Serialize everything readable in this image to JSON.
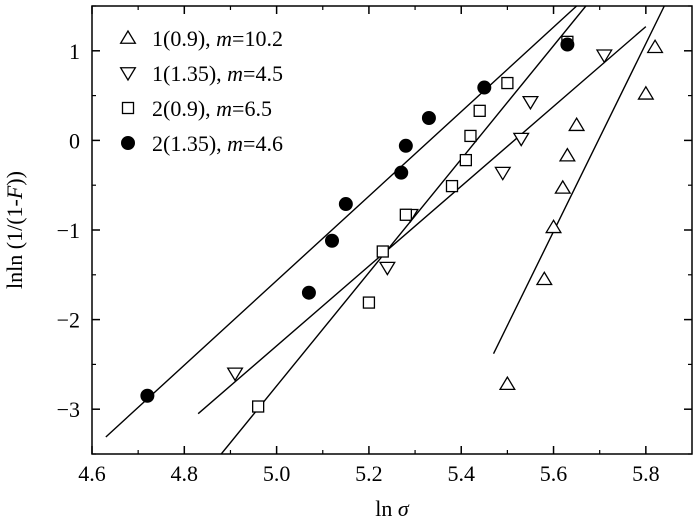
{
  "chart_data": {
    "type": "scatter",
    "xlabel_prefix": "ln ",
    "xlabel_var": "σ",
    "ylabel_prefix": "lnln (1/(1-",
    "ylabel_var": "F",
    "ylabel_suffix": "))",
    "xlim": [
      4.6,
      5.9
    ],
    "ylim": [
      -3.5,
      1.5
    ],
    "xticks": [
      4.6,
      4.8,
      5.0,
      5.2,
      5.4,
      5.6,
      5.8
    ],
    "xtick_labels": [
      "4.6",
      "4.8",
      "5.0",
      "5.2",
      "5.4",
      "5.6",
      "5.8"
    ],
    "yticks": [
      1,
      0,
      -1,
      -2,
      -3
    ],
    "ytick_labels": [
      "1",
      "0",
      "−1",
      "−2",
      "−3"
    ],
    "grid": false,
    "legend_position": "top-left",
    "series": [
      {
        "name": "1(0.9)",
        "m_value": "=10.2",
        "marker": "triangle-up",
        "x": [
          5.5,
          5.58,
          5.6,
          5.62,
          5.63,
          5.65,
          5.8,
          5.82
        ],
        "y": [
          -2.72,
          -1.55,
          -0.97,
          -0.53,
          -0.17,
          0.17,
          0.52,
          1.04
        ],
        "fit": {
          "x": [
            5.47,
            5.84
          ],
          "y": [
            -2.38,
            1.5
          ]
        }
      },
      {
        "name": "1(1.35)",
        "m_value": "=4.5",
        "marker": "triangle-down",
        "x": [
          4.91,
          5.24,
          5.29,
          5.49,
          5.53,
          5.55,
          5.71
        ],
        "y": [
          -2.6,
          -1.42,
          -0.83,
          -0.36,
          0.02,
          0.43,
          0.95
        ],
        "fit": {
          "x": [
            4.83,
            5.8
          ],
          "y": [
            -3.05,
            1.27
          ]
        }
      },
      {
        "name": "2(0.9)",
        "m_value": "=6.5",
        "marker": "square",
        "x": [
          4.96,
          5.2,
          5.23,
          5.28,
          5.38,
          5.41,
          5.42,
          5.44,
          5.5,
          5.63
        ],
        "y": [
          -2.97,
          -1.81,
          -1.24,
          -0.83,
          -0.51,
          -0.22,
          0.05,
          0.33,
          0.64,
          1.1
        ],
        "fit": {
          "x": [
            4.88,
            5.67
          ],
          "y": [
            -3.5,
            1.5
          ]
        }
      },
      {
        "name": "2(1.35)",
        "m_value": "=4.6",
        "marker": "circle",
        "x": [
          4.72,
          5.07,
          5.12,
          5.15,
          5.27,
          5.28,
          5.33,
          5.45,
          5.63
        ],
        "y": [
          -2.85,
          -1.7,
          -1.12,
          -0.71,
          -0.36,
          -0.06,
          0.25,
          0.59,
          1.07
        ],
        "fit": {
          "x": [
            4.63,
            5.65
          ],
          "y": [
            -3.31,
            1.5
          ]
        }
      }
    ]
  }
}
